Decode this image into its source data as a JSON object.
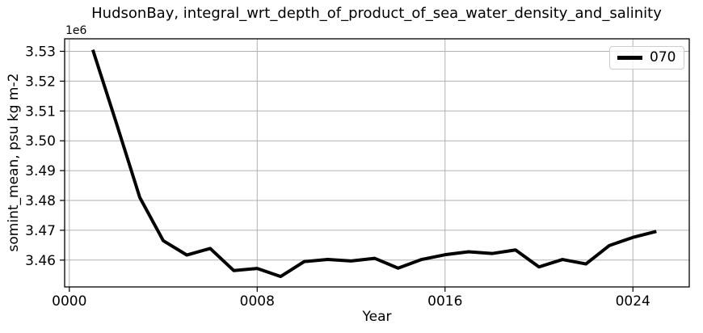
{
  "chart_data": {
    "type": "line",
    "title": "HudsonBay, integral_wrt_depth_of_product_of_sea_water_density_and_salinity",
    "xlabel": "Year",
    "ylabel": "somint_mean, psu kg m-2",
    "offset_text": "1e6",
    "x": [
      1,
      2,
      3,
      4,
      5,
      6,
      7,
      8,
      9,
      10,
      11,
      12,
      13,
      14,
      15,
      16,
      17,
      18,
      19,
      20,
      21,
      22,
      23,
      24,
      25
    ],
    "series": [
      {
        "name": "070",
        "color": "#000000",
        "linewidth": 4,
        "values_1e6": [
          3.5305,
          3.506,
          3.481,
          3.4665,
          3.4617,
          3.4639,
          3.4565,
          3.4572,
          3.4545,
          3.4595,
          3.4602,
          3.4597,
          3.4606,
          3.4573,
          3.4602,
          3.4618,
          3.4628,
          3.4622,
          3.4634,
          3.4577,
          3.4602,
          3.4587,
          3.4649,
          3.4676,
          3.4696
        ]
      }
    ],
    "xlim": [
      -0.2,
      26.4
    ],
    "ylim_1e6": [
      3.451,
      3.5342
    ],
    "xticks": {
      "values": [
        0,
        8,
        16,
        24
      ],
      "labels": [
        "0000",
        "0008",
        "0016",
        "0024"
      ]
    },
    "yticks": {
      "values": [
        3.46,
        3.47,
        3.48,
        3.49,
        3.5,
        3.51,
        3.52,
        3.53
      ],
      "labels": [
        "3.46",
        "3.47",
        "3.48",
        "3.49",
        "3.50",
        "3.51",
        "3.52",
        "3.53"
      ]
    },
    "grid": true,
    "grid_color": "#b0b0b0",
    "spine_color": "#000000",
    "legend": {
      "location": "upper right",
      "entries": [
        "070"
      ]
    }
  }
}
